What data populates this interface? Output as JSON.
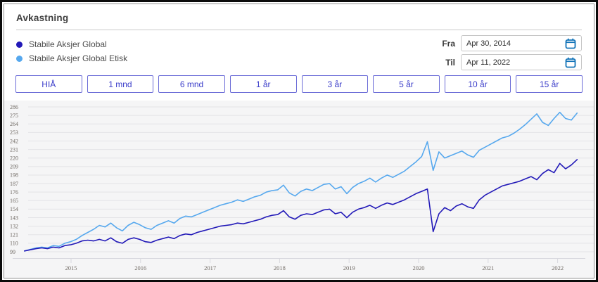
{
  "header": {
    "title": "Avkastning"
  },
  "legend": {
    "items": [
      {
        "label": "Stabile Aksjer Global",
        "color": "#2219b8"
      },
      {
        "label": "Stabile Aksjer Global Etisk",
        "color": "#56a8ee"
      }
    ]
  },
  "date_range": {
    "from_label": "Fra",
    "from_value": "Apr 30, 2014",
    "to_label": "Til",
    "to_value": "Apr 11, 2022",
    "calendar_icon_color": "#1273b8"
  },
  "range_buttons": [
    "HIÅ",
    "1 mnd",
    "6 mnd",
    "1 år",
    "3 år",
    "5 år",
    "10 år",
    "15 år"
  ],
  "colors": {
    "accent_button_text": "#3a3cc9",
    "accent_button_border": "#6a6bd7",
    "chart_background": "#f5f5f6",
    "gridline": "#e3e3e7",
    "axis_line": "#d8d8de",
    "axis_label": "#6e6862"
  },
  "chart_data": {
    "type": "line",
    "title": "",
    "xlabel": "",
    "ylabel": "",
    "x_start": 2014.33,
    "x_end": 2022.28,
    "x_ticks": [
      2015,
      2016,
      2017,
      2018,
      2019,
      2020,
      2021,
      2022
    ],
    "x_tick_labels": [
      "2015",
      "2016",
      "2017",
      "2018",
      "2019",
      "2020",
      "2021",
      "2022"
    ],
    "y_ticks": [
      99,
      110,
      121,
      132,
      143,
      154,
      165,
      176,
      187,
      198,
      209,
      220,
      231,
      242,
      253,
      264,
      275,
      286
    ],
    "ylim": [
      99,
      286
    ],
    "grid": true,
    "legend_position": "top-left",
    "points_cadence": "monthly Apr 2014 - Apr 2022",
    "series": [
      {
        "name": "Stabile Aksjer Global",
        "color": "#2219b8",
        "values": [
          100,
          101.5,
          103,
          104,
          103,
          105,
          104,
          107,
          108,
          110,
          113,
          114,
          113,
          115,
          113,
          117,
          112,
          110,
          115,
          117,
          115,
          112,
          111,
          114,
          116,
          118,
          116,
          120,
          122,
          121,
          124,
          126,
          128,
          130,
          132,
          133,
          134,
          136,
          135,
          137,
          139,
          141,
          144,
          146,
          147,
          152,
          144,
          141,
          146,
          148,
          147,
          150,
          153,
          154,
          148,
          150,
          143,
          150,
          154,
          156,
          159,
          155,
          159,
          162,
          160,
          163,
          166,
          170,
          174,
          177,
          180,
          125,
          148,
          156,
          152,
          158,
          161,
          157,
          155,
          166,
          172,
          176,
          180,
          184,
          186,
          188,
          190,
          193,
          196,
          192,
          200,
          205,
          201,
          213,
          206,
          211,
          218
        ]
      },
      {
        "name": "Stabile Aksjer Global Etisk",
        "color": "#56a8ee",
        "values": [
          100,
          102,
          104,
          105,
          104,
          107,
          106,
          110,
          112,
          115,
          120,
          124,
          128,
          133,
          131,
          136,
          130,
          126,
          133,
          137,
          134,
          130,
          128,
          133,
          136,
          139,
          136,
          142,
          145,
          144,
          147,
          150,
          153,
          156,
          159,
          161,
          163,
          166,
          164,
          167,
          170,
          172,
          176,
          178,
          179,
          185,
          175,
          171,
          177,
          180,
          178,
          182,
          186,
          187,
          180,
          183,
          174,
          182,
          187,
          190,
          194,
          189,
          194,
          198,
          195,
          199,
          203,
          209,
          215,
          222,
          241,
          204,
          228,
          220,
          223,
          226,
          229,
          224,
          221,
          230,
          234,
          238,
          242,
          246,
          248,
          252,
          257,
          263,
          270,
          277,
          266,
          262,
          271,
          279,
          271,
          269,
          278
        ]
      }
    ]
  }
}
